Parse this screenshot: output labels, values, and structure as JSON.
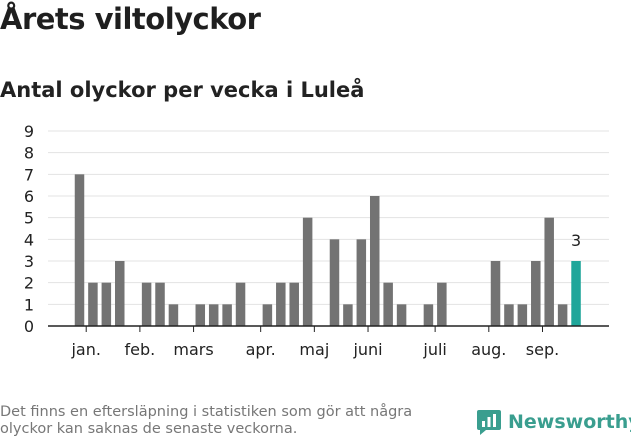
{
  "header": {
    "title": "Årets viltolyckor",
    "subtitle": "Antal olyckor per vecka i Luleå"
  },
  "footer": {
    "note": "Det finns en eftersläpning i statistiken som gör att några olyckor kan saknas de senaste veckorna.",
    "brand": "Newsworthy"
  },
  "colors": {
    "bar": "#737373",
    "highlight": "#1fa69a",
    "grid": "#e3e3e3",
    "axis": "#222222",
    "brand": "#3a9e8f"
  },
  "chart_data": {
    "type": "bar",
    "title": "Antal olyckor per vecka i Luleå",
    "xlabel": "",
    "ylabel": "",
    "ylim": [
      0,
      9
    ],
    "yticks": [
      0,
      1,
      2,
      3,
      4,
      5,
      6,
      7,
      8,
      9
    ],
    "grid": true,
    "weeks": [
      1,
      2,
      3,
      4,
      5,
      6,
      7,
      8,
      9,
      10,
      11,
      12,
      13,
      14,
      15,
      16,
      17,
      18,
      19,
      20,
      21,
      22,
      23,
      24,
      25,
      26,
      27,
      28,
      29,
      30,
      31,
      32,
      33,
      34,
      35,
      36,
      37,
      38
    ],
    "values": [
      7,
      2,
      2,
      3,
      0,
      2,
      2,
      1,
      0,
      1,
      1,
      1,
      2,
      0,
      1,
      2,
      2,
      5,
      0,
      4,
      1,
      4,
      6,
      2,
      1,
      0,
      1,
      2,
      0,
      0,
      0,
      3,
      1,
      1,
      3,
      5,
      1,
      3
    ],
    "month_labels": [
      {
        "label": "jan.",
        "week": 1.5
      },
      {
        "label": "feb.",
        "week": 5.5
      },
      {
        "label": "mars",
        "week": 9.5
      },
      {
        "label": "apr.",
        "week": 14.5
      },
      {
        "label": "maj",
        "week": 18.5
      },
      {
        "label": "juni",
        "week": 22.5
      },
      {
        "label": "juli",
        "week": 27.5
      },
      {
        "label": "aug.",
        "week": 31.5
      },
      {
        "label": "sep.",
        "week": 35.5
      }
    ],
    "highlight": {
      "week": 38,
      "value": 3,
      "label": "3"
    }
  }
}
